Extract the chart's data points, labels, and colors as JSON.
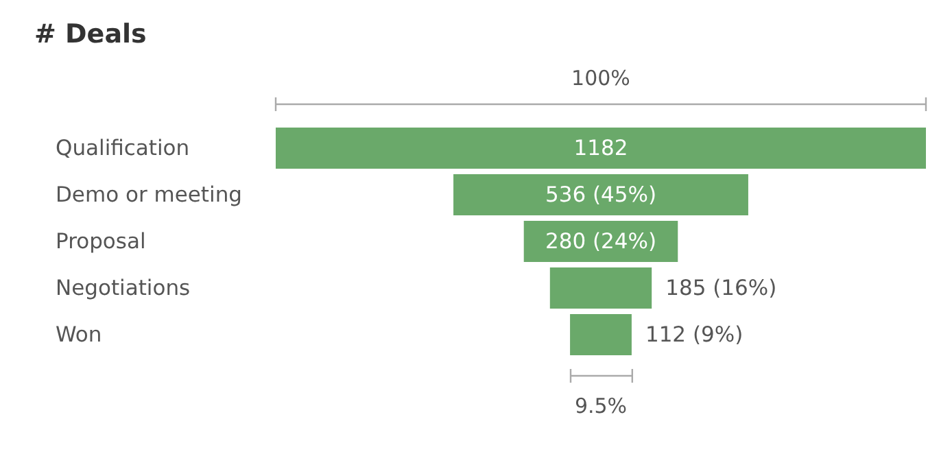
{
  "chart_data": {
    "type": "other",
    "title": "# Deals",
    "categories": [
      "Qualification",
      "Demo or meeting",
      "Proposal",
      "Negotiations",
      "Won"
    ],
    "values": [
      1182,
      536,
      280,
      185,
      112
    ],
    "value_labels": [
      "1182",
      "536 (45%)",
      "280 (24%)",
      "185 (16%)",
      "112 (9%)"
    ],
    "color": "#6aa96a",
    "annotations": [
      "100%",
      "9.5%"
    ]
  }
}
